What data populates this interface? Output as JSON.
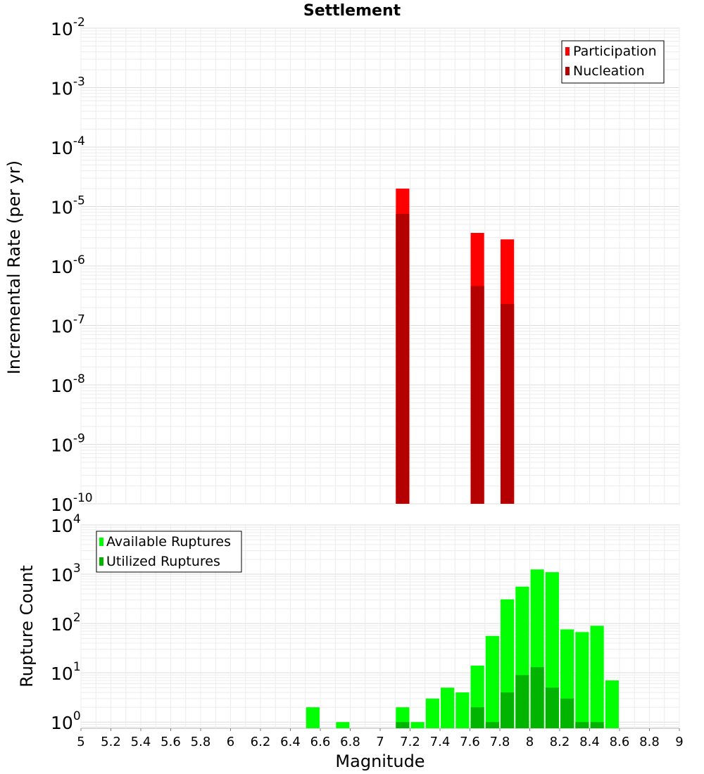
{
  "chart_data": [
    {
      "type": "bar",
      "title": "Settlement",
      "ylabel": "Incremental Rate (per yr)",
      "xlabel": "",
      "yscale": "log",
      "xlim": [
        5,
        9
      ],
      "ylim": [
        1e-10,
        0.01
      ],
      "grid": true,
      "legend_position": "top-right",
      "bar_width": 0.09,
      "series": [
        {
          "name": "Participation",
          "color": "#ff0000",
          "x": [
            7.15,
            7.65,
            7.85
          ],
          "values": [
            2e-05,
            3.6e-06,
            2.8e-06
          ]
        },
        {
          "name": "Nucleation",
          "color": "#b40000",
          "x": [
            7.15,
            7.65,
            7.85
          ],
          "values": [
            7.5e-06,
            4.6e-07,
            2.3e-07
          ]
        }
      ]
    },
    {
      "type": "bar",
      "title": "",
      "ylabel": "Rupture Count",
      "xlabel": "Magnitude",
      "yscale": "log",
      "xlim": [
        5,
        9
      ],
      "ylim": [
        0.75,
        10000
      ],
      "grid": true,
      "legend_position": "top-left",
      "bar_width": 0.09,
      "series": [
        {
          "name": "Available Ruptures",
          "color": "#00ff00",
          "x": [
            6.55,
            6.75,
            7.15,
            7.25,
            7.35,
            7.45,
            7.55,
            7.65,
            7.75,
            7.85,
            7.95,
            8.05,
            8.15,
            8.25,
            8.35,
            8.45,
            8.55
          ],
          "values": [
            2,
            1,
            2,
            1,
            3,
            5,
            4,
            14,
            56,
            310,
            560,
            1250,
            1100,
            76,
            67,
            90,
            7
          ]
        },
        {
          "name": "Utilized Ruptures",
          "color": "#00b400",
          "x": [
            7.15,
            7.65,
            7.75,
            7.85,
            7.95,
            8.05,
            8.15,
            8.25,
            8.35,
            8.45
          ],
          "values": [
            1,
            2,
            1,
            4,
            9,
            13,
            5,
            3,
            1,
            1
          ]
        }
      ]
    }
  ],
  "ticks": {
    "x": [
      "5",
      "5.2",
      "5.4",
      "5.6",
      "5.8",
      "6",
      "6.2",
      "6.4",
      "6.6",
      "6.8",
      "7",
      "7.2",
      "7.4",
      "7.6",
      "7.8",
      "8",
      "8.2",
      "8.4",
      "8.6",
      "8.8",
      "9"
    ],
    "top_y_exponents": [
      "-2",
      "-3",
      "-4",
      "-5",
      "-6",
      "-7",
      "-8",
      "-9",
      "-10"
    ],
    "bottom_y_exponents": [
      "4",
      "3",
      "2",
      "1",
      "0"
    ],
    "base": "10"
  }
}
